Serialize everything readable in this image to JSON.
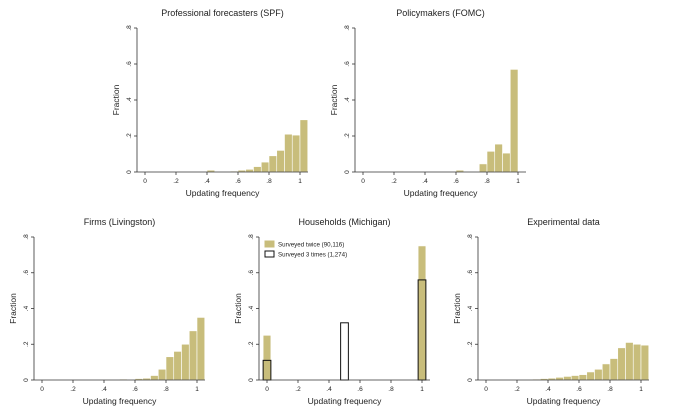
{
  "colors": {
    "bar_fill": "#c8bd7b",
    "bar_stroke": "#ffffff",
    "axis": "#333333",
    "outline_bar": "#111111"
  },
  "chart_data": [
    {
      "id": "spf",
      "type": "bar",
      "title": "Professional forecasters (SPF)",
      "xlabel": "Updating frequency",
      "ylabel": "Fraction",
      "xlim": [
        0,
        1
      ],
      "ylim": [
        0,
        0.8
      ],
      "xticks": [
        0,
        0.2,
        0.4,
        0.6,
        0.8,
        1
      ],
      "xtick_labels": [
        "0",
        ".2",
        ".4",
        ".6",
        ".8",
        "1"
      ],
      "yticks": [
        0,
        0.2,
        0.4,
        0.6,
        0.8
      ],
      "ytick_labels": [
        "0",
        ".2",
        ".4",
        ".6",
        ".8"
      ],
      "grid": false,
      "series": [
        {
          "style": "filled",
          "bars": [
            {
              "x0": 0.4,
              "x1": 0.45,
              "value": 0.01
            },
            {
              "x0": 0.55,
              "x1": 0.6,
              "value": 0.005
            },
            {
              "x0": 0.6,
              "x1": 0.65,
              "value": 0.01
            },
            {
              "x0": 0.65,
              "x1": 0.7,
              "value": 0.015
            },
            {
              "x0": 0.7,
              "x1": 0.75,
              "value": 0.03
            },
            {
              "x0": 0.75,
              "x1": 0.8,
              "value": 0.055
            },
            {
              "x0": 0.8,
              "x1": 0.85,
              "value": 0.09
            },
            {
              "x0": 0.85,
              "x1": 0.9,
              "value": 0.12
            },
            {
              "x0": 0.9,
              "x1": 0.95,
              "value": 0.21
            },
            {
              "x0": 0.95,
              "x1": 1.0,
              "value": 0.205
            },
            {
              "x0": 1.0,
              "x1": 1.05,
              "value": 0.29
            }
          ]
        }
      ]
    },
    {
      "id": "fomc",
      "type": "bar",
      "title": "Policymakers (FOMC)",
      "xlabel": "Updating frequency",
      "ylabel": "Fraction",
      "xlim": [
        0,
        1
      ],
      "ylim": [
        0,
        0.8
      ],
      "xticks": [
        0,
        0.2,
        0.4,
        0.6,
        0.8,
        1
      ],
      "xtick_labels": [
        "0",
        ".2",
        ".4",
        ".6",
        ".8",
        "1"
      ],
      "yticks": [
        0,
        0.2,
        0.4,
        0.6,
        0.8
      ],
      "ytick_labels": [
        "0",
        ".2",
        ".4",
        ".6",
        ".8"
      ],
      "grid": false,
      "series": [
        {
          "style": "filled",
          "bars": [
            {
              "x0": 0.6,
              "x1": 0.65,
              "value": 0.01
            },
            {
              "x0": 0.75,
              "x1": 0.8,
              "value": 0.045
            },
            {
              "x0": 0.8,
              "x1": 0.85,
              "value": 0.115
            },
            {
              "x0": 0.85,
              "x1": 0.9,
              "value": 0.155
            },
            {
              "x0": 0.9,
              "x1": 0.95,
              "value": 0.105
            },
            {
              "x0": 0.95,
              "x1": 1.0,
              "value": 0.57
            }
          ]
        }
      ]
    },
    {
      "id": "livingston",
      "type": "bar",
      "title": "Firms (Livingston)",
      "xlabel": "Updating frequency",
      "ylabel": "Fraction",
      "xlim": [
        0,
        1
      ],
      "ylim": [
        0,
        0.8
      ],
      "xticks": [
        0,
        0.2,
        0.4,
        0.6,
        0.8,
        1
      ],
      "xtick_labels": [
        "0",
        ".2",
        ".4",
        ".6",
        ".8",
        "1"
      ],
      "yticks": [
        0,
        0.2,
        0.4,
        0.6,
        0.8
      ],
      "ytick_labels": [
        "0",
        ".2",
        ".4",
        ".6",
        ".8"
      ],
      "grid": false,
      "series": [
        {
          "style": "filled",
          "bars": [
            {
              "x0": 0.4,
              "x1": 0.45,
              "value": 0.003
            },
            {
              "x0": 0.5,
              "x1": 0.55,
              "value": 0.005
            },
            {
              "x0": 0.6,
              "x1": 0.65,
              "value": 0.008
            },
            {
              "x0": 0.65,
              "x1": 0.7,
              "value": 0.01
            },
            {
              "x0": 0.7,
              "x1": 0.75,
              "value": 0.025
            },
            {
              "x0": 0.75,
              "x1": 0.8,
              "value": 0.06
            },
            {
              "x0": 0.8,
              "x1": 0.85,
              "value": 0.13
            },
            {
              "x0": 0.85,
              "x1": 0.9,
              "value": 0.16
            },
            {
              "x0": 0.9,
              "x1": 0.95,
              "value": 0.2
            },
            {
              "x0": 0.95,
              "x1": 1.0,
              "value": 0.275
            },
            {
              "x0": 1.0,
              "x1": 1.05,
              "value": 0.35
            }
          ]
        }
      ]
    },
    {
      "id": "michigan",
      "type": "bar",
      "title": "Households (Michigan)",
      "xlabel": "Updating frequency",
      "ylabel": "Fraction",
      "xlim": [
        0,
        1
      ],
      "ylim": [
        0,
        0.8
      ],
      "xticks": [
        0,
        0.2,
        0.4,
        0.6,
        0.8,
        1
      ],
      "xtick_labels": [
        "0",
        ".2",
        ".4",
        ".6",
        ".8",
        "1"
      ],
      "yticks": [
        0,
        0.2,
        0.4,
        0.6,
        0.8
      ],
      "ytick_labels": [
        "0",
        ".2",
        ".4",
        ".6",
        ".8"
      ],
      "grid": false,
      "legend": {
        "placement": "top-left"
      },
      "series": [
        {
          "name": "Surveyed twice (90,116)",
          "style": "filled",
          "bars": [
            {
              "x0": -0.025,
              "x1": 0.025,
              "value": 0.25
            },
            {
              "x0": 0.975,
              "x1": 1.025,
              "value": 0.75
            }
          ]
        },
        {
          "name": "Surveyed 3 times (1,274)",
          "style": "outline",
          "bars": [
            {
              "x0": -0.025,
              "x1": 0.025,
              "value": 0.11
            },
            {
              "x0": 0.475,
              "x1": 0.525,
              "value": 0.32
            },
            {
              "x0": 0.975,
              "x1": 1.025,
              "value": 0.56
            }
          ]
        }
      ]
    },
    {
      "id": "experimental",
      "type": "bar",
      "title": "Experimental data",
      "xlabel": "Updating frequency",
      "ylabel": "Fraction",
      "xlim": [
        0,
        1
      ],
      "ylim": [
        0,
        0.8
      ],
      "xticks": [
        0,
        0.2,
        0.4,
        0.6,
        0.8,
        1
      ],
      "xtick_labels": [
        "0",
        ".2",
        ".4",
        ".6",
        ".8",
        "1"
      ],
      "yticks": [
        0,
        0.2,
        0.4,
        0.6,
        0.8
      ],
      "ytick_labels": [
        "0",
        ".2",
        ".4",
        ".6",
        ".8"
      ],
      "grid": false,
      "series": [
        {
          "style": "filled",
          "bars": [
            {
              "x0": 0.2,
              "x1": 0.25,
              "value": 0.002
            },
            {
              "x0": 0.25,
              "x1": 0.3,
              "value": 0.003
            },
            {
              "x0": 0.3,
              "x1": 0.35,
              "value": 0.005
            },
            {
              "x0": 0.35,
              "x1": 0.4,
              "value": 0.008
            },
            {
              "x0": 0.4,
              "x1": 0.45,
              "value": 0.01
            },
            {
              "x0": 0.45,
              "x1": 0.5,
              "value": 0.015
            },
            {
              "x0": 0.5,
              "x1": 0.55,
              "value": 0.02
            },
            {
              "x0": 0.55,
              "x1": 0.6,
              "value": 0.025
            },
            {
              "x0": 0.6,
              "x1": 0.65,
              "value": 0.03
            },
            {
              "x0": 0.65,
              "x1": 0.7,
              "value": 0.045
            },
            {
              "x0": 0.7,
              "x1": 0.75,
              "value": 0.06
            },
            {
              "x0": 0.75,
              "x1": 0.8,
              "value": 0.09
            },
            {
              "x0": 0.8,
              "x1": 0.85,
              "value": 0.12
            },
            {
              "x0": 0.85,
              "x1": 0.9,
              "value": 0.18
            },
            {
              "x0": 0.9,
              "x1": 0.95,
              "value": 0.21
            },
            {
              "x0": 0.95,
              "x1": 1.0,
              "value": 0.2
            },
            {
              "x0": 1.0,
              "x1": 1.05,
              "value": 0.195
            }
          ]
        }
      ]
    }
  ]
}
